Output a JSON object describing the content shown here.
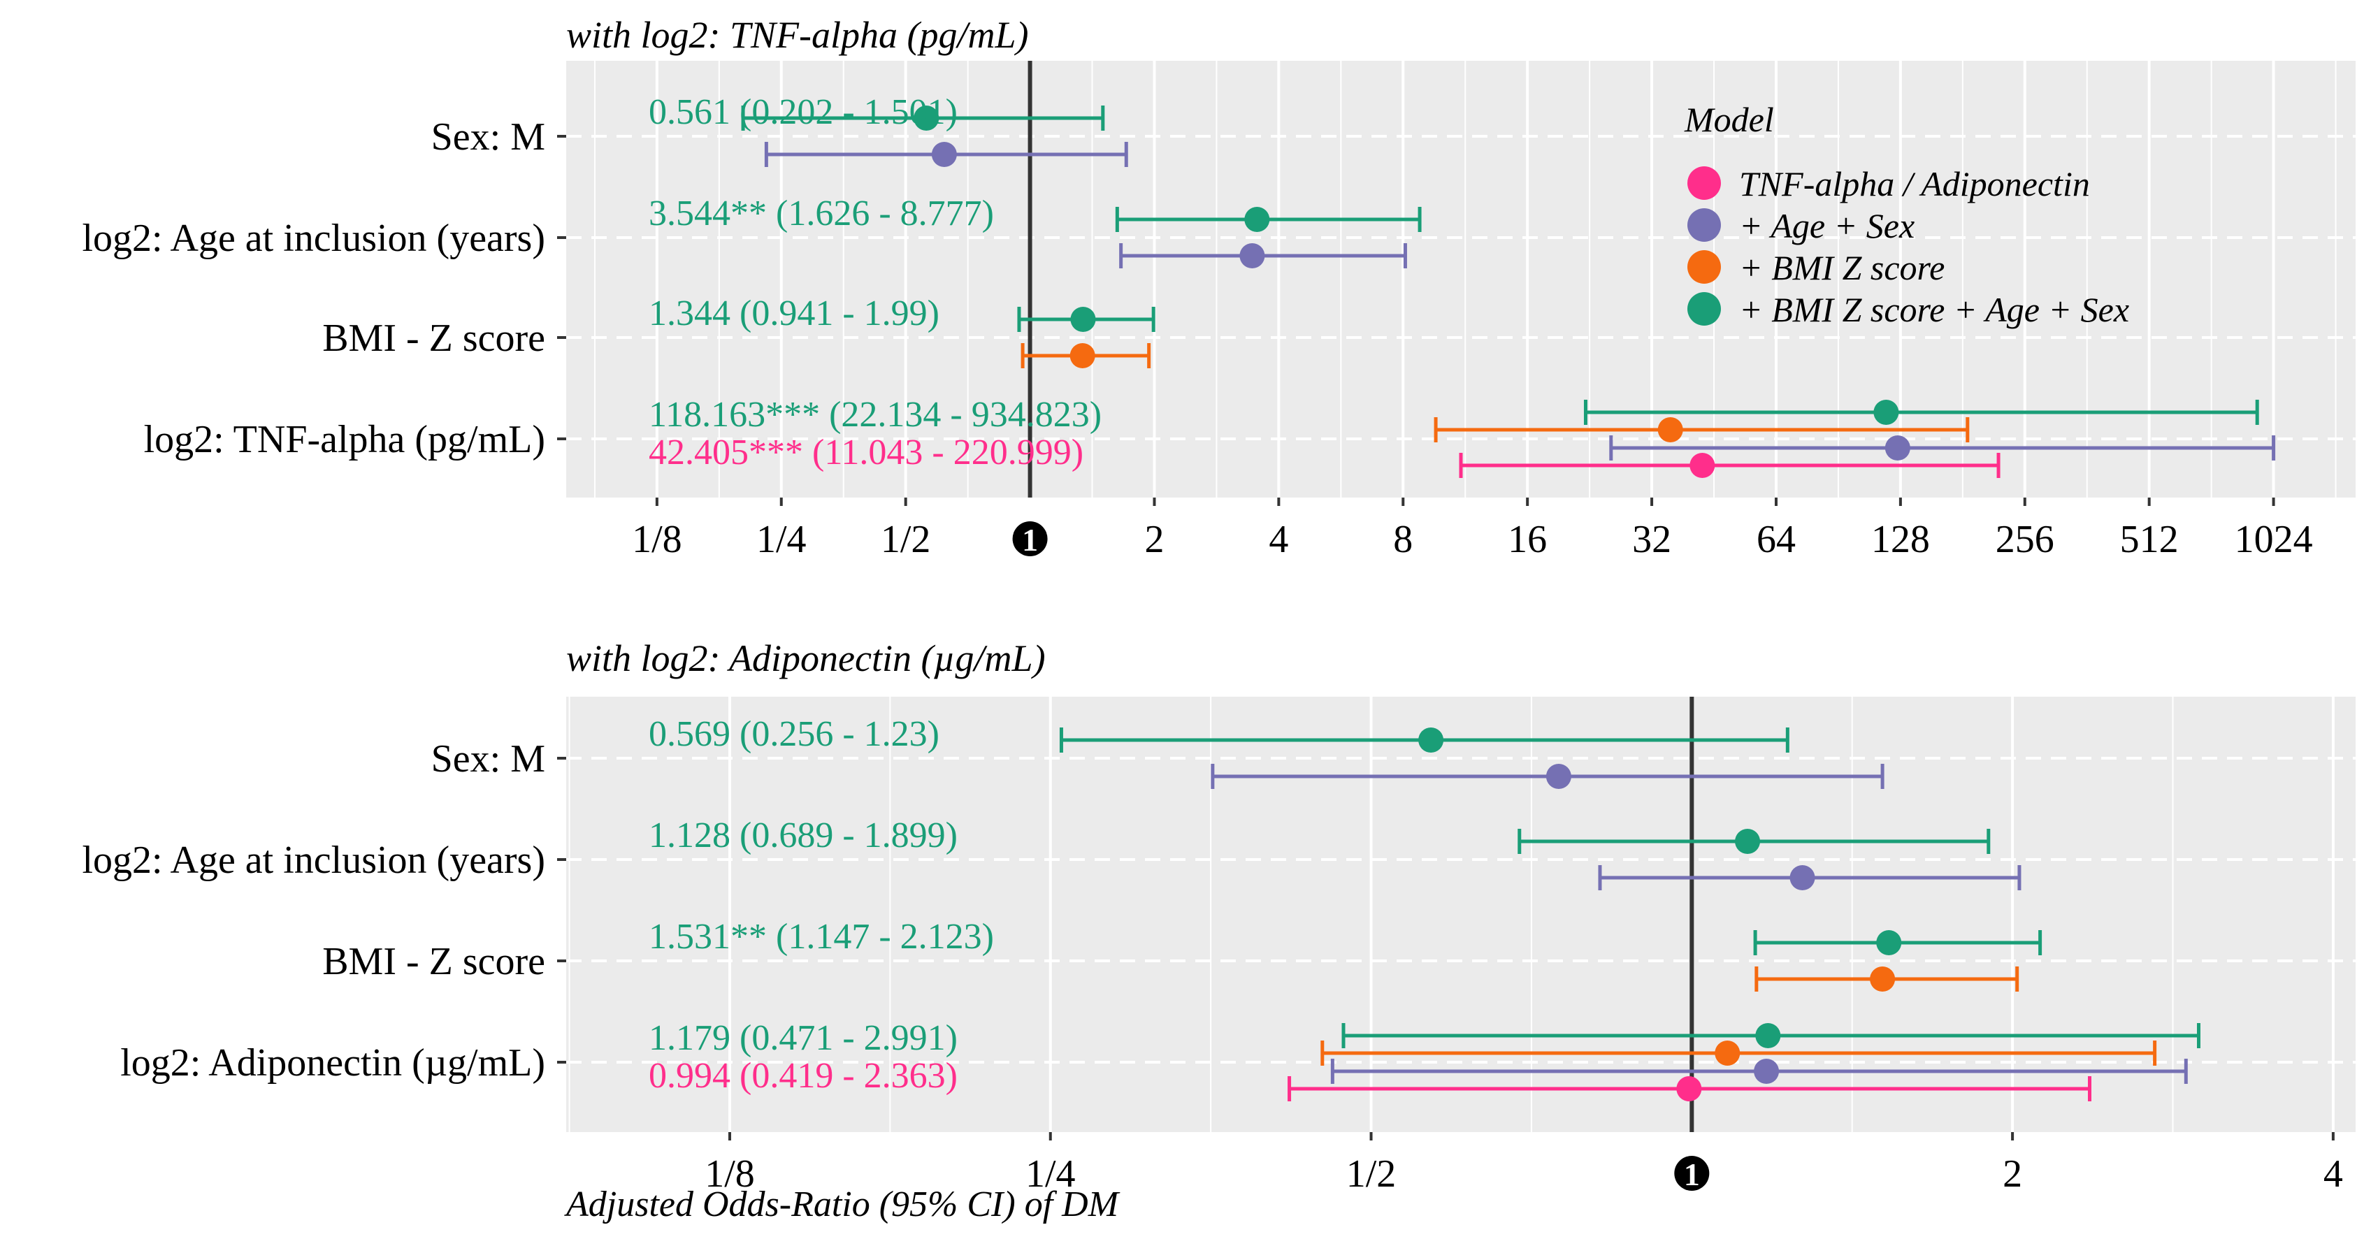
{
  "chart_data": [
    {
      "type": "forest",
      "title": "with log2: TNF-alpha (pg/mL)",
      "xscale": "log2",
      "xlim_log2": [
        -3.73,
        10.66
      ],
      "xticks": [
        -3,
        -2,
        -1,
        1,
        2,
        3,
        4,
        5,
        6,
        7,
        8,
        9,
        10
      ],
      "xtick_labels": [
        "1/8",
        "1/4",
        "1/2",
        "2",
        "4",
        "8",
        "16",
        "32",
        "64",
        "128",
        "256",
        "512",
        "1024"
      ],
      "reference_label": "1",
      "rows": [
        {
          "label": "Sex: M",
          "estimates": [
            {
              "model": 3,
              "or": 0.561,
              "lo": 0.202,
              "hi": 1.501
            },
            {
              "model": 1,
              "or": 0.62,
              "lo": 0.23,
              "hi": 1.71
            }
          ],
          "annotations": [
            {
              "text": "0.561 (0.202 - 1.501)",
              "model": 3
            }
          ]
        },
        {
          "label": "log2: Age at inclusion (years)",
          "estimates": [
            {
              "model": 3,
              "or": 3.544,
              "lo": 1.626,
              "hi": 8.777
            },
            {
              "model": 1,
              "or": 3.45,
              "lo": 1.66,
              "hi": 8.1
            }
          ],
          "annotations": [
            {
              "text": "3.544** (1.626 - 8.777)",
              "model": 3
            }
          ]
        },
        {
          "label": "BMI - Z score",
          "estimates": [
            {
              "model": 3,
              "or": 1.344,
              "lo": 0.941,
              "hi": 1.99
            },
            {
              "model": 2,
              "or": 1.34,
              "lo": 0.96,
              "hi": 1.94
            }
          ],
          "annotations": [
            {
              "text": "1.344 (0.941 - 1.99)",
              "model": 3
            }
          ]
        },
        {
          "label": "log2: TNF-alpha (pg/mL)",
          "estimates": [
            {
              "model": 3,
              "or": 118.163,
              "lo": 22.134,
              "hi": 934.823
            },
            {
              "model": 2,
              "or": 35.5,
              "lo": 9.6,
              "hi": 186
            },
            {
              "model": 1,
              "or": 126,
              "lo": 25.5,
              "hi": 1024
            },
            {
              "model": 0,
              "or": 42.405,
              "lo": 11.043,
              "hi": 220.999
            }
          ],
          "annotations": [
            {
              "text": "118.163*** (22.134 - 934.823)",
              "model": 3
            },
            {
              "text": "42.405*** (11.043 - 220.999)",
              "model": 0
            }
          ]
        }
      ]
    },
    {
      "type": "forest",
      "title": "with log2: Adiponectin (µg/mL)",
      "xscale": "log2",
      "xlim_log2": [
        -3.51,
        2.07
      ],
      "xticks": [
        -3,
        -2,
        -1,
        1,
        2
      ],
      "xtick_labels": [
        "1/8",
        "1/4",
        "1/2",
        "2",
        "4"
      ],
      "reference_label": "1",
      "xlabel": "Adjusted Odds-Ratio (95% CI) of DM",
      "rows": [
        {
          "label": "Sex: M",
          "estimates": [
            {
              "model": 3,
              "or": 0.569,
              "lo": 0.256,
              "hi": 1.23
            },
            {
              "model": 1,
              "or": 0.75,
              "lo": 0.355,
              "hi": 1.51
            }
          ],
          "annotations": [
            {
              "text": "0.569 (0.256 - 1.23)",
              "model": 3
            }
          ]
        },
        {
          "label": "log2: Age at inclusion (years)",
          "estimates": [
            {
              "model": 3,
              "or": 1.128,
              "lo": 0.689,
              "hi": 1.899
            },
            {
              "model": 1,
              "or": 1.27,
              "lo": 0.82,
              "hi": 2.03
            }
          ],
          "annotations": [
            {
              "text": "1.128 (0.689 - 1.899)",
              "model": 3
            }
          ]
        },
        {
          "label": "BMI - Z score",
          "estimates": [
            {
              "model": 3,
              "or": 1.531,
              "lo": 1.147,
              "hi": 2.123
            },
            {
              "model": 2,
              "or": 1.51,
              "lo": 1.15,
              "hi": 2.02
            }
          ],
          "annotations": [
            {
              "text": "1.531** (1.147 - 2.123)",
              "model": 3
            }
          ]
        },
        {
          "label": "log2: Adiponectin (µg/mL)",
          "estimates": [
            {
              "model": 3,
              "or": 1.179,
              "lo": 0.471,
              "hi": 2.991
            },
            {
              "model": 2,
              "or": 1.08,
              "lo": 0.45,
              "hi": 2.72
            },
            {
              "model": 1,
              "or": 1.175,
              "lo": 0.46,
              "hi": 2.91
            },
            {
              "model": 0,
              "or": 0.994,
              "lo": 0.419,
              "hi": 2.363
            }
          ],
          "annotations": [
            {
              "text": "1.179 (0.471 - 2.991)",
              "model": 3
            },
            {
              "text": "0.994 (0.419 - 2.363)",
              "model": 0
            }
          ]
        }
      ]
    }
  ],
  "legend": {
    "title": "Model",
    "items": [
      {
        "label": "TNF-alpha / Adiponectin",
        "color": "#ff2e8b"
      },
      {
        "label": "+ Age + Sex",
        "color": "#7570b3"
      },
      {
        "label": "+ BMI Z score",
        "color": "#f56a10"
      },
      {
        "label": "+ BMI Z score + Age + Sex",
        "color": "#1a9e77"
      }
    ]
  },
  "colors": {
    "panel_background": "#ebebeb",
    "grid": "#ffffff",
    "reference_line": "#333333"
  }
}
